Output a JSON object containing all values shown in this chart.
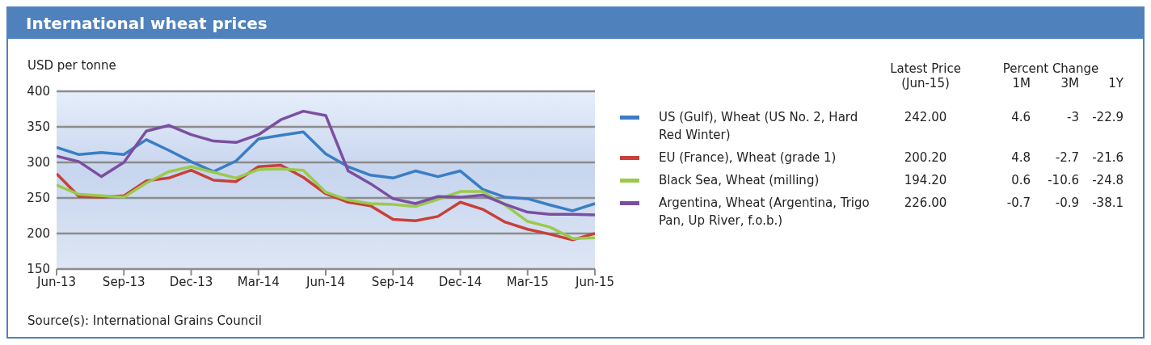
{
  "chart_data": {
    "type": "line",
    "title": "International wheat prices",
    "ylabel": "USD per tonne",
    "x": [
      "2013-06",
      "2013-07",
      "2013-08",
      "2013-09",
      "2013-10",
      "2013-11",
      "2013-12",
      "2014-01",
      "2014-02",
      "2014-03",
      "2014-04",
      "2014-05",
      "2014-06",
      "2014-07",
      "2014-08",
      "2014-09",
      "2014-10",
      "2014-11",
      "2014-12",
      "2015-01",
      "2015-02",
      "2015-03",
      "2015-04",
      "2015-05",
      "2015-06"
    ],
    "series": [
      {
        "name": "US (Gulf), Wheat (US No. 2, Hard Red Winter)",
        "color": "#3b7dc4",
        "values": [
          321,
          311,
          314,
          311,
          332,
          317,
          301,
          287,
          302,
          333,
          338,
          343,
          312,
          294,
          282,
          278,
          288,
          280,
          288,
          262,
          251,
          249,
          240,
          232,
          242
        ]
      },
      {
        "name": "EU (France), Wheat (grade 1)",
        "color": "#c8403a",
        "values": [
          284,
          252,
          251,
          253,
          274,
          278,
          289,
          275,
          273,
          294,
          296,
          279,
          256,
          244,
          239,
          220,
          218,
          224,
          244,
          234,
          216,
          206,
          199,
          191,
          200
        ]
      },
      {
        "name": "Black Sea, Wheat (milling)",
        "color": "#9bc94d",
        "values": [
          268,
          255,
          253,
          251,
          271,
          287,
          294,
          286,
          278,
          290,
          291,
          289,
          258,
          247,
          242,
          241,
          238,
          248,
          259,
          259,
          240,
          217,
          209,
          193,
          194
        ]
      },
      {
        "name": "Argentina, Wheat (Argentina, Trigo Pan, Up River, f.o.b.)",
        "color": "#7b4fa0",
        "values": [
          309,
          301,
          280,
          300,
          344,
          352,
          339,
          330,
          328,
          339,
          360,
          372,
          366,
          288,
          270,
          249,
          242,
          252,
          251,
          254,
          241,
          230,
          227,
          227,
          226
        ]
      }
    ],
    "xlim": [
      "2013-06",
      "2015-06"
    ],
    "xticks": [
      {
        "value": "2013-06",
        "label": "Jun-13"
      },
      {
        "value": "2013-09",
        "label": "Sep-13"
      },
      {
        "value": "2013-12",
        "label": "Dec-13"
      },
      {
        "value": "2014-03",
        "label": "Mar-14"
      },
      {
        "value": "2014-06",
        "label": "Jun-14"
      },
      {
        "value": "2014-09",
        "label": "Sep-14"
      },
      {
        "value": "2014-12",
        "label": "Dec-14"
      },
      {
        "value": "2015-03",
        "label": "Mar-15"
      },
      {
        "value": "2015-06",
        "label": "Jun-15"
      }
    ],
    "ylim": [
      150,
      400
    ],
    "yticks": [
      150,
      200,
      250,
      300,
      350,
      400
    ],
    "grid": "y",
    "legend": "right",
    "marker": "none",
    "line_style": "solid",
    "annotations": [
      "Latest Price",
      "(Jun-15)",
      "Percent Change",
      "1M",
      "3M",
      "1Y",
      "242.00",
      "4.6",
      "-3",
      "-22.9",
      "200.20",
      "4.8",
      "-2.7",
      "-21.6",
      "194.20",
      "0.6",
      "-10.6",
      "-24.8",
      "226.00",
      "-0.7",
      "-0.9",
      "-38.1",
      "Source(s): International Grains Council"
    ]
  }
}
